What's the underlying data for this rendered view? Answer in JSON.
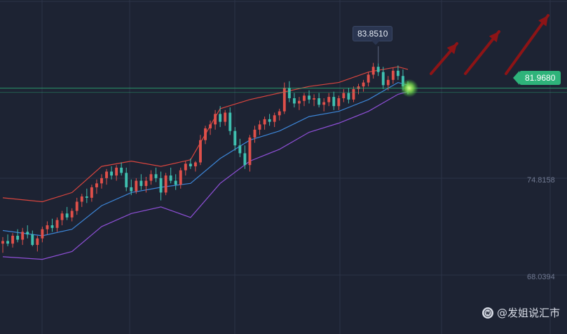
{
  "colors": {
    "background": "#1d2333",
    "up_candle": "#e0504a",
    "down_candle": "#3fc0b0",
    "middle_band": "#3d86d8",
    "upper_band": "#d8453e",
    "lower_band": "#8e4fd6",
    "current_price_line": "#2eb37a",
    "arrow": "#8d1416"
  },
  "price_axis": {
    "levels": [
      "74.8158",
      "68.0394"
    ]
  },
  "tags": {
    "high_label": "83.8510",
    "current_price": "81.9680"
  },
  "watermark": {
    "icon": "weibo-icon",
    "text": "@发姐说汇市"
  },
  "chart_data": {
    "type": "candlestick",
    "title": "",
    "indicator": "bollinger_bands",
    "ylim": [
      63.2,
      88.7
    ],
    "grid": true,
    "overlays": {
      "current_price_line": 81.968,
      "marked_high": 83.851
    },
    "candles_ohlc": [
      [
        70.1,
        70.6,
        69.4,
        70.3
      ],
      [
        70.3,
        70.8,
        69.9,
        70.1
      ],
      [
        70.1,
        70.9,
        69.8,
        70.7
      ],
      [
        70.7,
        71.2,
        70.2,
        70.4
      ],
      [
        70.4,
        71.3,
        70.0,
        71.0
      ],
      [
        71.0,
        71.5,
        70.5,
        70.8
      ],
      [
        70.8,
        71.1,
        69.9,
        70.0
      ],
      [
        70.0,
        70.7,
        69.5,
        70.5
      ],
      [
        70.5,
        71.4,
        70.2,
        71.2
      ],
      [
        71.2,
        71.8,
        70.8,
        71.5
      ],
      [
        71.5,
        72.0,
        71.0,
        71.3
      ],
      [
        71.3,
        72.1,
        71.0,
        71.9
      ],
      [
        71.9,
        72.6,
        71.5,
        72.4
      ],
      [
        72.4,
        72.9,
        71.9,
        72.1
      ],
      [
        72.1,
        72.8,
        71.8,
        72.6
      ],
      [
        72.6,
        73.6,
        72.3,
        73.3
      ],
      [
        73.3,
        73.9,
        72.9,
        73.7
      ],
      [
        73.7,
        74.3,
        73.2,
        73.6
      ],
      [
        73.6,
        74.6,
        73.3,
        74.4
      ],
      [
        74.4,
        75.0,
        73.9,
        74.7
      ],
      [
        74.7,
        75.4,
        74.3,
        75.1
      ],
      [
        75.1,
        75.8,
        74.6,
        75.6
      ],
      [
        75.6,
        76.0,
        75.0,
        75.3
      ],
      [
        75.3,
        76.1,
        74.9,
        75.9
      ],
      [
        75.9,
        76.3,
        75.3,
        75.5
      ],
      [
        75.5,
        75.9,
        74.1,
        74.4
      ],
      [
        74.4,
        75.0,
        73.8,
        74.1
      ],
      [
        74.1,
        75.1,
        73.9,
        74.9
      ],
      [
        74.9,
        75.4,
        74.2,
        74.5
      ],
      [
        74.5,
        75.2,
        74.0,
        74.9
      ],
      [
        74.9,
        75.7,
        74.6,
        75.4
      ],
      [
        75.4,
        75.9,
        74.8,
        75.1
      ],
      [
        75.1,
        75.6,
        73.4,
        74.0
      ],
      [
        74.0,
        75.5,
        73.8,
        75.3
      ],
      [
        75.3,
        75.9,
        74.7,
        74.9
      ],
      [
        74.9,
        75.4,
        74.2,
        74.6
      ],
      [
        74.6,
        75.9,
        74.3,
        75.7
      ],
      [
        75.7,
        76.4,
        75.3,
        76.2
      ],
      [
        76.2,
        76.6,
        75.8,
        76.0
      ],
      [
        76.0,
        76.4,
        75.6,
        76.3
      ],
      [
        76.3,
        78.4,
        76.1,
        78.0
      ],
      [
        78.0,
        79.1,
        77.7,
        78.9
      ],
      [
        78.9,
        79.5,
        78.4,
        79.2
      ],
      [
        79.2,
        80.3,
        78.8,
        80.0
      ],
      [
        80.0,
        80.6,
        79.0,
        79.4
      ],
      [
        79.4,
        80.3,
        79.1,
        80.1
      ],
      [
        80.1,
        80.5,
        78.4,
        78.7
      ],
      [
        78.7,
        79.0,
        77.2,
        77.6
      ],
      [
        77.6,
        78.1,
        76.7,
        77.0
      ],
      [
        77.0,
        77.6,
        75.8,
        76.1
      ],
      [
        76.1,
        78.4,
        75.6,
        78.2
      ],
      [
        78.2,
        79.1,
        77.8,
        78.8
      ],
      [
        78.8,
        79.5,
        78.4,
        79.2
      ],
      [
        79.2,
        79.8,
        78.8,
        79.6
      ],
      [
        79.6,
        80.0,
        79.1,
        79.4
      ],
      [
        79.4,
        80.1,
        79.0,
        79.9
      ],
      [
        79.9,
        80.4,
        79.5,
        80.2
      ],
      [
        80.2,
        82.4,
        80.0,
        82.0
      ],
      [
        82.0,
        82.5,
        80.9,
        81.2
      ],
      [
        81.2,
        81.6,
        80.5,
        80.8
      ],
      [
        80.8,
        81.3,
        80.3,
        81.0
      ],
      [
        81.0,
        81.6,
        80.6,
        81.4
      ],
      [
        81.4,
        81.8,
        80.8,
        81.1
      ],
      [
        81.1,
        81.5,
        80.6,
        81.2
      ],
      [
        81.2,
        81.6,
        80.5,
        80.7
      ],
      [
        80.7,
        81.2,
        80.2,
        80.9
      ],
      [
        80.9,
        81.6,
        80.6,
        81.3
      ],
      [
        81.3,
        81.7,
        80.3,
        80.6
      ],
      [
        80.6,
        81.4,
        80.3,
        81.2
      ],
      [
        81.2,
        81.9,
        80.9,
        81.6
      ],
      [
        81.6,
        82.0,
        80.8,
        81.1
      ],
      [
        81.1,
        82.1,
        80.9,
        81.9
      ],
      [
        81.9,
        82.3,
        81.5,
        82.1
      ],
      [
        82.1,
        82.6,
        81.7,
        82.4
      ],
      [
        82.4,
        83.2,
        82.1,
        83.0
      ],
      [
        83.0,
        83.9,
        82.7,
        83.6
      ],
      [
        83.6,
        83.85,
        82.9,
        83.2
      ],
      [
        83.2,
        83.6,
        81.9,
        82.2
      ],
      [
        82.2,
        82.9,
        81.8,
        82.6
      ],
      [
        82.6,
        83.5,
        82.3,
        83.3
      ],
      [
        83.3,
        83.7,
        82.6,
        82.9
      ],
      [
        82.9,
        83.4,
        81.8,
        82.1
      ],
      [
        82.1,
        82.5,
        81.5,
        81.968
      ]
    ],
    "bands": {
      "upper": [
        [
          0,
          73.6
        ],
        [
          8,
          73.3
        ],
        [
          14,
          74.0
        ],
        [
          20,
          76.0
        ],
        [
          26,
          76.4
        ],
        [
          32,
          76.0
        ],
        [
          38,
          76.5
        ],
        [
          44,
          80.4
        ],
        [
          50,
          81.1
        ],
        [
          56,
          81.6
        ],
        [
          62,
          82.1
        ],
        [
          68,
          82.4
        ],
        [
          74,
          83.2
        ],
        [
          80,
          83.6
        ],
        [
          82,
          83.4
        ]
      ],
      "middle": [
        [
          0,
          71.1
        ],
        [
          8,
          70.7
        ],
        [
          14,
          71.2
        ],
        [
          20,
          73.0
        ],
        [
          26,
          74.0
        ],
        [
          32,
          74.4
        ],
        [
          38,
          74.7
        ],
        [
          44,
          76.6
        ],
        [
          50,
          78.0
        ],
        [
          56,
          78.7
        ],
        [
          62,
          79.8
        ],
        [
          68,
          80.2
        ],
        [
          74,
          81.1
        ],
        [
          80,
          82.4
        ],
        [
          82,
          82.2
        ]
      ],
      "lower": [
        [
          0,
          69.1
        ],
        [
          8,
          68.9
        ],
        [
          14,
          69.5
        ],
        [
          20,
          71.4
        ],
        [
          26,
          72.4
        ],
        [
          32,
          72.9
        ],
        [
          38,
          72.1
        ],
        [
          44,
          74.7
        ],
        [
          50,
          76.4
        ],
        [
          56,
          77.3
        ],
        [
          62,
          78.6
        ],
        [
          68,
          79.3
        ],
        [
          74,
          80.2
        ],
        [
          80,
          81.5
        ],
        [
          82,
          81.7
        ]
      ]
    },
    "annotations": [
      "upward arrows projecting higher prices"
    ]
  }
}
